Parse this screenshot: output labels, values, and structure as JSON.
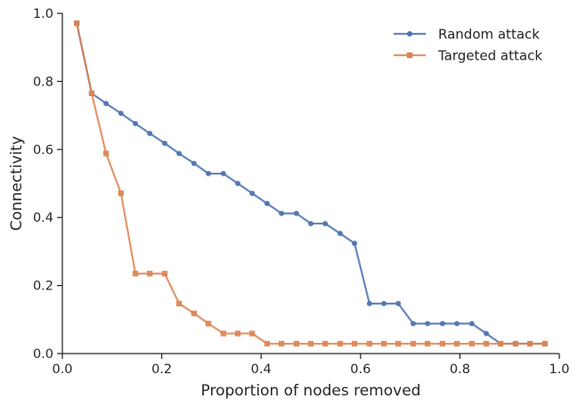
{
  "chart_data": {
    "type": "line",
    "title": "",
    "xlabel": "Proportion of nodes removed",
    "ylabel": "Connectivity",
    "xlim": [
      0.0,
      1.0
    ],
    "ylim": [
      0.0,
      1.0
    ],
    "xticks": [
      0.0,
      0.2,
      0.4,
      0.6,
      0.8,
      1.0
    ],
    "xtick_labels": [
      "0.0",
      "0.2",
      "0.4",
      "0.6",
      "0.8",
      "1.0"
    ],
    "yticks": [
      0.0,
      0.2,
      0.4,
      0.6,
      0.8,
      1.0
    ],
    "ytick_labels": [
      "0.0",
      "0.2",
      "0.4",
      "0.6",
      "0.8",
      "1.0"
    ],
    "grid": false,
    "legend_position": "top-right",
    "x": [
      0.029,
      0.059,
      0.088,
      0.118,
      0.147,
      0.176,
      0.206,
      0.235,
      0.265,
      0.294,
      0.324,
      0.353,
      0.382,
      0.412,
      0.441,
      0.471,
      0.5,
      0.529,
      0.559,
      0.588,
      0.618,
      0.647,
      0.676,
      0.706,
      0.735,
      0.765,
      0.794,
      0.824,
      0.853,
      0.882,
      0.912,
      0.941,
      0.971
    ],
    "series": [
      {
        "name": "Random attack",
        "color": "#4c72b0",
        "marker": "circle",
        "values": [
          0.971,
          0.765,
          0.735,
          0.706,
          0.676,
          0.647,
          0.618,
          0.588,
          0.559,
          0.529,
          0.529,
          0.5,
          0.471,
          0.441,
          0.412,
          0.412,
          0.382,
          0.382,
          0.353,
          0.324,
          0.147,
          0.147,
          0.147,
          0.088,
          0.088,
          0.088,
          0.088,
          0.088,
          0.059,
          0.029,
          0.029,
          0.029,
          0.029
        ]
      },
      {
        "name": "Targeted attack",
        "color": "#dd8452",
        "marker": "square",
        "values": [
          0.971,
          0.765,
          0.588,
          0.471,
          0.235,
          0.235,
          0.235,
          0.147,
          0.118,
          0.088,
          0.059,
          0.059,
          0.059,
          0.029,
          0.029,
          0.029,
          0.029,
          0.029,
          0.029,
          0.029,
          0.029,
          0.029,
          0.029,
          0.029,
          0.029,
          0.029,
          0.029,
          0.029,
          0.029,
          0.029,
          0.029,
          0.029,
          0.029
        ]
      }
    ]
  }
}
